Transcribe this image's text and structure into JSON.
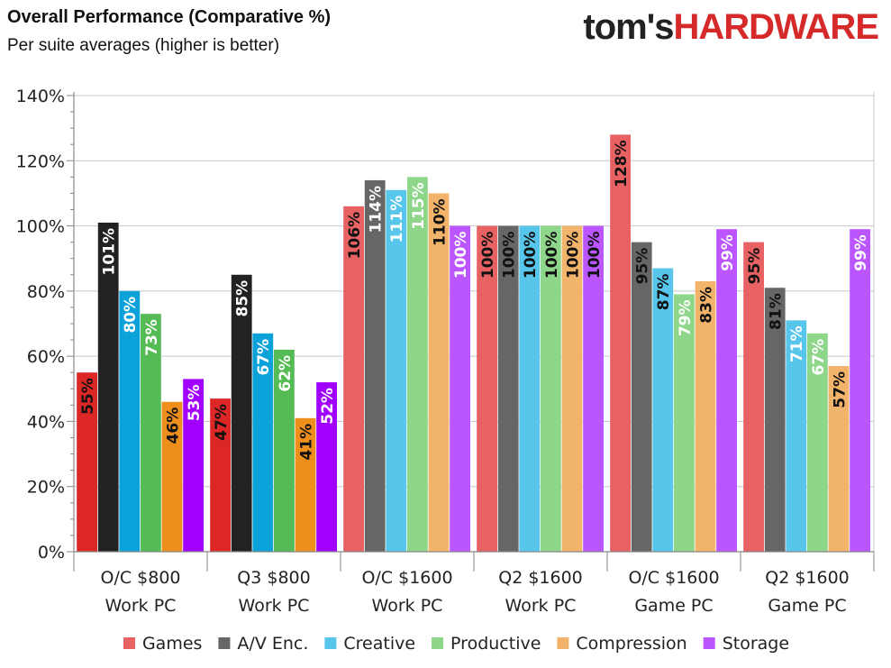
{
  "header": {
    "title": "Overall Performance (Comparative %)",
    "subtitle": "Per suite averages (higher is better)",
    "logo_part1": "tom's",
    "logo_part2": "HARDWARE"
  },
  "colors": {
    "brand_red": "#d62a2a",
    "axis": "#888888",
    "grid": "#c8c8c8"
  },
  "chart_data": {
    "type": "bar",
    "title": "Overall Performance (Comparative %)",
    "subtitle": "Per suite averages (higher is better)",
    "ylim": [
      0,
      140
    ],
    "yticks": [
      0,
      20,
      40,
      60,
      80,
      100,
      120,
      140
    ],
    "ytick_format": "%",
    "grid": true,
    "legend_position": "bottom",
    "categories": [
      [
        "O/C $800",
        "Work PC"
      ],
      [
        "Q3 $800",
        "Work PC"
      ],
      [
        "O/C $1600",
        "Work PC"
      ],
      [
        "Q2 $1600",
        "Work PC"
      ],
      [
        "O/C $1600",
        "Game PC"
      ],
      [
        "Q2 $1600",
        "Game PC"
      ]
    ],
    "series": [
      {
        "name": "Games",
        "values": [
          55,
          47,
          106,
          100,
          128,
          95
        ]
      },
      {
        "name": "A/V Enc.",
        "values": [
          101,
          85,
          114,
          100,
          95,
          81
        ]
      },
      {
        "name": "Creative",
        "values": [
          80,
          67,
          111,
          100,
          87,
          71
        ]
      },
      {
        "name": "Productive",
        "values": [
          73,
          62,
          115,
          100,
          79,
          67
        ]
      },
      {
        "name": "Compression",
        "values": [
          46,
          41,
          110,
          100,
          83,
          57
        ]
      },
      {
        "name": "Storage",
        "values": [
          53,
          52,
          100,
          100,
          99,
          99
        ]
      }
    ],
    "data_labels": [
      [
        "55%",
        "101%",
        "80%",
        "73%",
        "46%",
        "53%"
      ],
      [
        "47%",
        "85%",
        "67%",
        "62%",
        "41%",
        "52%"
      ],
      [
        "106%",
        "114%",
        "111%",
        "115%",
        "110%",
        "100%"
      ],
      [
        "100%",
        "100%",
        "100%",
        "100%",
        "100%",
        "100%"
      ],
      [
        "128%",
        "95%",
        "87%",
        "79%",
        "83%",
        "99%"
      ],
      [
        "95%",
        "81%",
        "71%",
        "67%",
        "57%",
        "99%"
      ]
    ],
    "group_palettes": [
      [
        "#dd2626",
        "#222222",
        "#0aa2d8",
        "#55bb55",
        "#ee8f1c",
        "#a100ff"
      ],
      [
        "#dd2626",
        "#222222",
        "#0aa2d8",
        "#55bb55",
        "#ee8f1c",
        "#a100ff"
      ],
      [
        "#e86264",
        "#666666",
        "#57c6ea",
        "#8ed68a",
        "#f2b46b",
        "#bb55ff"
      ],
      [
        "#e86264",
        "#666666",
        "#57c6ea",
        "#8ed68a",
        "#f2b46b",
        "#bb55ff"
      ],
      [
        "#e86264",
        "#666666",
        "#57c6ea",
        "#8ed68a",
        "#f2b46b",
        "#bb55ff"
      ],
      [
        "#e86264",
        "#666666",
        "#57c6ea",
        "#8ed68a",
        "#f2b46b",
        "#bb55ff"
      ]
    ],
    "label_text_colors": [
      [
        "#111111",
        "#ffffff",
        "#ffffff",
        "#ffffff",
        "#111111",
        "#ffffff"
      ],
      [
        "#111111",
        "#ffffff",
        "#ffffff",
        "#ffffff",
        "#111111",
        "#ffffff"
      ],
      [
        "#111111",
        "#ffffff",
        "#ffffff",
        "#ffffff",
        "#111111",
        "#ffffff"
      ],
      [
        "#111111",
        "#111111",
        "#111111",
        "#111111",
        "#111111",
        "#111111"
      ],
      [
        "#111111",
        "#111111",
        "#111111",
        "#ffffff",
        "#111111",
        "#ffffff"
      ],
      [
        "#111111",
        "#111111",
        "#ffffff",
        "#ffffff",
        "#111111",
        "#ffffff"
      ]
    ],
    "legend_colors": [
      "#e86264",
      "#666666",
      "#57c6ea",
      "#8ed68a",
      "#f2b46b",
      "#bb55ff"
    ]
  }
}
